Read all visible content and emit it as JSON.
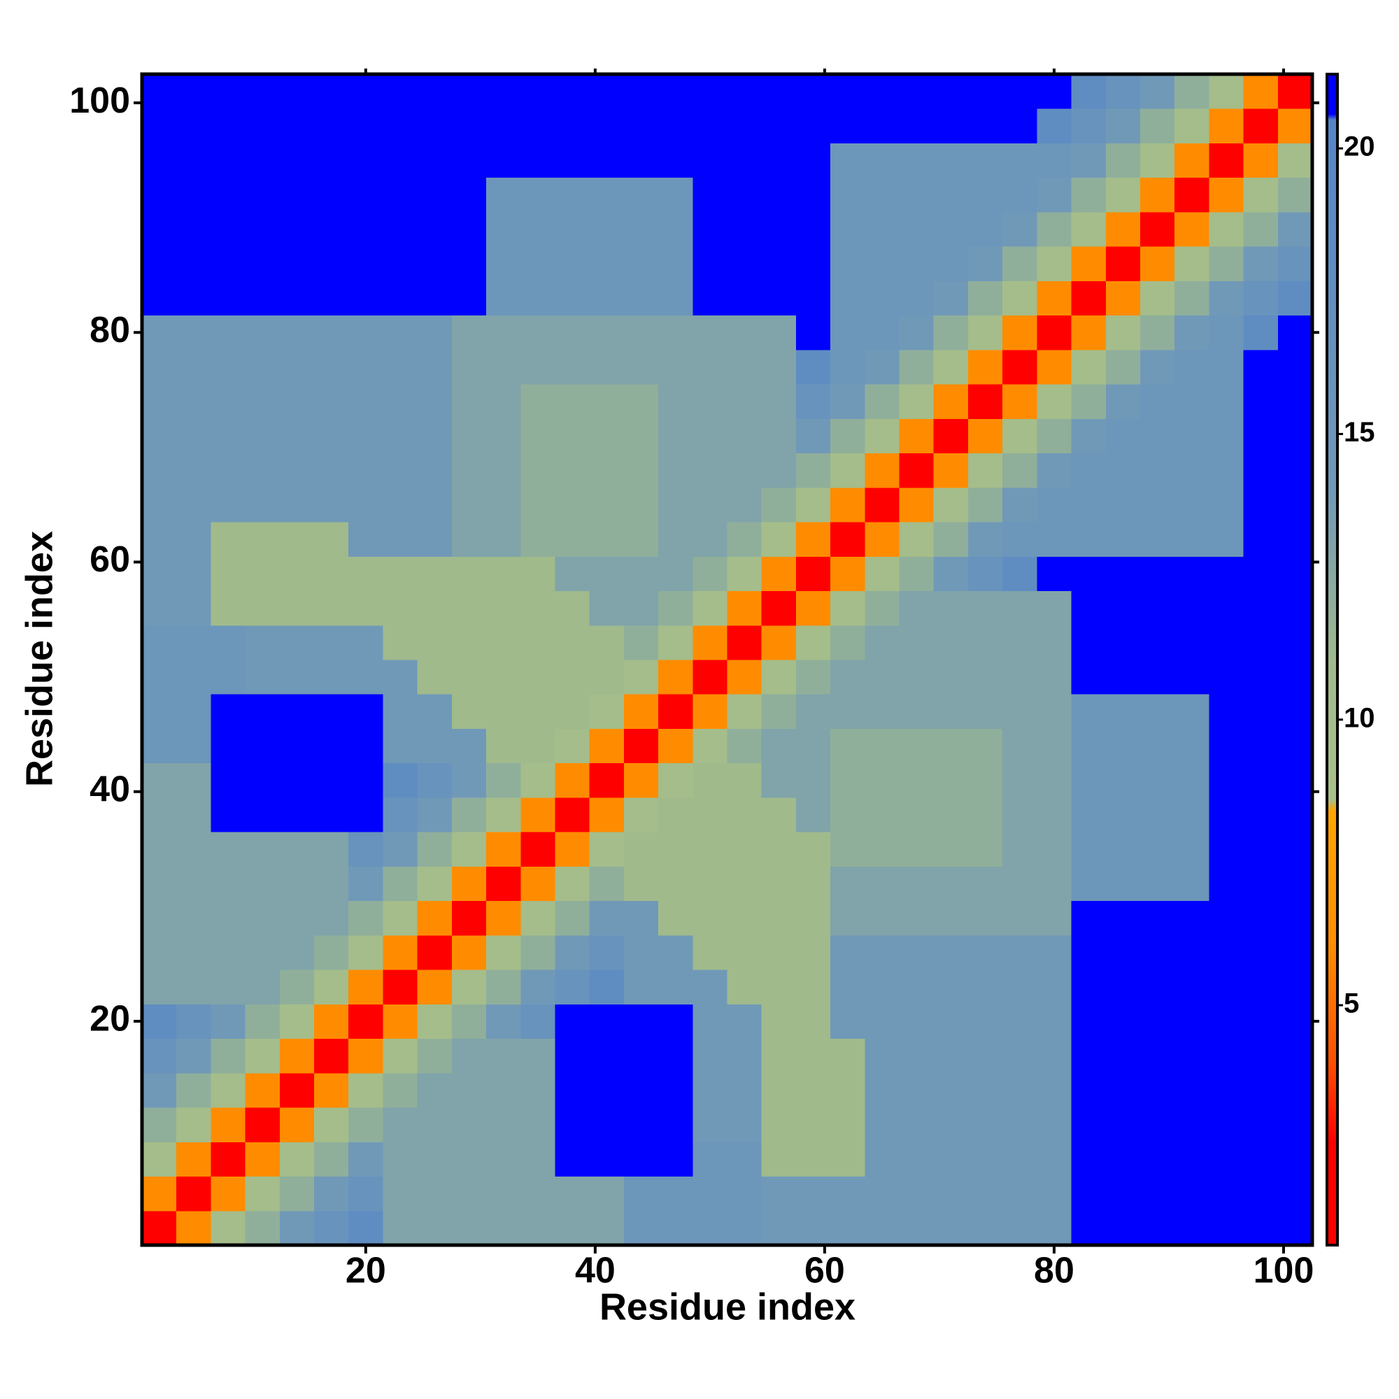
{
  "chart_data": {
    "type": "heatmap",
    "xlabel": "Residue index",
    "ylabel": "Residue index",
    "x": [
      2,
      5,
      8,
      11,
      14,
      17,
      20,
      23,
      26,
      29,
      32,
      35,
      38,
      41,
      44,
      47,
      50,
      53,
      56,
      59,
      62,
      65,
      68,
      71,
      74,
      77,
      80,
      83,
      86,
      89,
      92,
      95,
      98,
      101
    ],
    "y": [
      2,
      5,
      8,
      11,
      14,
      17,
      20,
      23,
      26,
      29,
      32,
      35,
      38,
      41,
      44,
      47,
      50,
      53,
      56,
      59,
      62,
      65,
      68,
      71,
      74,
      77,
      80,
      83,
      86,
      89,
      92,
      95,
      98,
      101
    ],
    "values": [
      [
        2,
        6,
        10,
        12,
        14,
        16,
        18,
        13,
        13,
        13,
        13,
        13,
        13,
        13,
        15,
        15,
        15,
        15,
        14,
        14,
        14,
        14,
        14,
        14,
        14,
        14,
        14,
        21,
        21,
        21,
        21,
        21,
        21,
        21
      ],
      [
        6,
        2,
        6,
        10,
        12,
        14,
        16,
        13,
        13,
        13,
        13,
        13,
        13,
        13,
        15,
        15,
        15,
        15,
        14,
        14,
        14,
        14,
        14,
        14,
        14,
        14,
        14,
        21,
        21,
        21,
        21,
        21,
        21,
        21
      ],
      [
        10,
        6,
        2,
        6,
        10,
        12,
        14,
        13,
        13,
        13,
        13,
        13,
        21,
        21,
        21,
        21,
        15,
        15,
        11,
        11,
        11,
        14,
        14,
        14,
        14,
        14,
        14,
        21,
        21,
        21,
        21,
        21,
        21,
        21
      ],
      [
        12,
        10,
        6,
        2,
        6,
        10,
        12,
        13,
        13,
        13,
        13,
        13,
        21,
        21,
        21,
        21,
        14,
        14,
        11,
        11,
        11,
        14,
        14,
        14,
        14,
        14,
        14,
        21,
        21,
        21,
        21,
        21,
        21,
        21
      ],
      [
        14,
        12,
        10,
        6,
        2,
        6,
        10,
        12,
        13,
        13,
        13,
        13,
        21,
        21,
        21,
        21,
        14,
        14,
        11,
        11,
        11,
        14,
        14,
        14,
        14,
        14,
        14,
        21,
        21,
        21,
        21,
        21,
        21,
        21
      ],
      [
        16,
        14,
        12,
        10,
        6,
        2,
        6,
        10,
        12,
        13,
        13,
        13,
        21,
        21,
        21,
        21,
        14,
        14,
        11,
        11,
        11,
        14,
        14,
        14,
        14,
        14,
        14,
        21,
        21,
        21,
        21,
        21,
        21,
        21
      ],
      [
        18,
        16,
        14,
        12,
        10,
        6,
        2,
        6,
        10,
        12,
        14,
        16,
        21,
        21,
        21,
        21,
        14,
        14,
        11,
        11,
        14,
        14,
        14,
        14,
        14,
        14,
        14,
        21,
        21,
        21,
        21,
        21,
        21,
        21
      ],
      [
        13,
        13,
        13,
        13,
        12,
        10,
        6,
        2,
        6,
        10,
        12,
        14,
        16,
        18,
        14,
        14,
        14,
        11,
        11,
        11,
        14,
        14,
        14,
        14,
        14,
        14,
        14,
        21,
        21,
        21,
        21,
        21,
        21,
        21
      ],
      [
        13,
        13,
        13,
        13,
        13,
        12,
        10,
        6,
        2,
        6,
        10,
        12,
        14,
        16,
        14,
        14,
        11,
        11,
        11,
        11,
        14,
        14,
        14,
        14,
        14,
        14,
        14,
        21,
        21,
        21,
        21,
        21,
        21,
        21
      ],
      [
        13,
        13,
        13,
        13,
        13,
        13,
        12,
        10,
        6,
        2,
        6,
        10,
        12,
        14,
        14,
        11,
        11,
        11,
        11,
        11,
        13,
        13,
        13,
        13,
        13,
        13,
        13,
        21,
        21,
        21,
        21,
        21,
        21,
        21
      ],
      [
        13,
        13,
        13,
        13,
        13,
        13,
        14,
        12,
        10,
        6,
        2,
        6,
        10,
        12,
        11,
        11,
        11,
        11,
        11,
        11,
        13,
        13,
        13,
        13,
        13,
        13,
        13,
        15,
        15,
        15,
        15,
        21,
        21,
        21
      ],
      [
        13,
        13,
        13,
        13,
        13,
        13,
        16,
        14,
        12,
        10,
        6,
        2,
        6,
        10,
        11,
        11,
        11,
        11,
        11,
        11,
        12,
        12,
        12,
        12,
        12,
        13,
        13,
        15,
        15,
        15,
        15,
        21,
        21,
        21
      ],
      [
        13,
        13,
        21,
        21,
        21,
        21,
        21,
        16,
        14,
        12,
        10,
        6,
        2,
        6,
        10,
        11,
        11,
        11,
        11,
        13,
        12,
        12,
        12,
        12,
        12,
        13,
        13,
        15,
        15,
        15,
        15,
        21,
        21,
        21
      ],
      [
        13,
        13,
        21,
        21,
        21,
        21,
        21,
        18,
        16,
        14,
        12,
        10,
        6,
        2,
        6,
        10,
        11,
        11,
        13,
        13,
        12,
        12,
        12,
        12,
        12,
        13,
        13,
        15,
        15,
        15,
        15,
        21,
        21,
        21
      ],
      [
        15,
        15,
        21,
        21,
        21,
        21,
        21,
        14,
        14,
        14,
        11,
        11,
        10,
        6,
        2,
        6,
        10,
        12,
        13,
        13,
        12,
        12,
        12,
        12,
        12,
        13,
        13,
        15,
        15,
        15,
        15,
        21,
        21,
        21
      ],
      [
        15,
        15,
        21,
        21,
        21,
        21,
        21,
        14,
        14,
        11,
        11,
        11,
        11,
        10,
        6,
        2,
        6,
        10,
        12,
        13,
        13,
        13,
        13,
        13,
        13,
        13,
        13,
        15,
        15,
        15,
        15,
        21,
        21,
        21
      ],
      [
        15,
        15,
        15,
        14,
        14,
        14,
        14,
        14,
        11,
        11,
        11,
        11,
        11,
        11,
        10,
        6,
        2,
        6,
        10,
        12,
        13,
        13,
        13,
        13,
        13,
        13,
        13,
        21,
        21,
        21,
        21,
        21,
        21,
        21
      ],
      [
        15,
        15,
        15,
        14,
        14,
        14,
        14,
        11,
        11,
        11,
        11,
        11,
        11,
        11,
        12,
        10,
        6,
        2,
        6,
        10,
        12,
        13,
        13,
        13,
        13,
        13,
        13,
        21,
        21,
        21,
        21,
        21,
        21,
        21
      ],
      [
        14,
        14,
        11,
        11,
        11,
        11,
        11,
        11,
        11,
        11,
        11,
        11,
        11,
        13,
        13,
        12,
        10,
        6,
        2,
        6,
        10,
        12,
        13,
        13,
        13,
        13,
        13,
        21,
        21,
        21,
        21,
        21,
        21,
        21
      ],
      [
        14,
        14,
        11,
        11,
        11,
        11,
        11,
        11,
        11,
        11,
        11,
        11,
        13,
        13,
        13,
        13,
        12,
        10,
        6,
        2,
        6,
        10,
        12,
        14,
        16,
        18,
        21,
        21,
        21,
        21,
        21,
        21,
        21,
        21
      ],
      [
        14,
        14,
        11,
        11,
        11,
        11,
        14,
        14,
        14,
        13,
        13,
        12,
        12,
        12,
        12,
        13,
        13,
        12,
        10,
        6,
        2,
        6,
        10,
        12,
        14,
        15,
        15,
        15,
        15,
        15,
        15,
        15,
        21,
        21
      ],
      [
        14,
        14,
        14,
        14,
        14,
        14,
        14,
        14,
        14,
        13,
        13,
        12,
        12,
        12,
        12,
        13,
        13,
        13,
        12,
        10,
        6,
        2,
        6,
        10,
        12,
        14,
        15,
        15,
        15,
        15,
        15,
        15,
        21,
        21
      ],
      [
        14,
        14,
        14,
        14,
        14,
        14,
        14,
        14,
        14,
        13,
        13,
        12,
        12,
        12,
        12,
        13,
        13,
        13,
        13,
        12,
        10,
        6,
        2,
        6,
        10,
        12,
        14,
        15,
        15,
        15,
        15,
        15,
        21,
        21
      ],
      [
        14,
        14,
        14,
        14,
        14,
        14,
        14,
        14,
        14,
        13,
        13,
        12,
        12,
        12,
        12,
        13,
        13,
        13,
        13,
        14,
        12,
        10,
        6,
        2,
        6,
        10,
        12,
        14,
        15,
        15,
        15,
        15,
        21,
        21
      ],
      [
        14,
        14,
        14,
        14,
        14,
        14,
        14,
        14,
        14,
        13,
        13,
        12,
        12,
        12,
        12,
        13,
        13,
        13,
        13,
        16,
        14,
        12,
        10,
        6,
        2,
        6,
        10,
        12,
        14,
        15,
        15,
        15,
        21,
        21
      ],
      [
        14,
        14,
        14,
        14,
        14,
        14,
        14,
        14,
        14,
        13,
        13,
        13,
        13,
        13,
        13,
        13,
        13,
        13,
        13,
        18,
        15,
        14,
        12,
        10,
        6,
        2,
        6,
        10,
        12,
        14,
        15,
        15,
        21,
        21
      ],
      [
        14,
        14,
        14,
        14,
        14,
        14,
        14,
        14,
        14,
        13,
        13,
        13,
        13,
        13,
        13,
        13,
        13,
        13,
        13,
        21,
        15,
        15,
        14,
        12,
        10,
        6,
        2,
        6,
        10,
        12,
        14,
        15,
        18,
        21
      ],
      [
        21,
        21,
        21,
        21,
        21,
        21,
        21,
        21,
        21,
        21,
        15,
        15,
        15,
        15,
        15,
        15,
        21,
        21,
        21,
        21,
        15,
        15,
        15,
        14,
        12,
        10,
        6,
        2,
        6,
        10,
        12,
        14,
        16,
        18
      ],
      [
        21,
        21,
        21,
        21,
        21,
        21,
        21,
        21,
        21,
        21,
        15,
        15,
        15,
        15,
        15,
        15,
        21,
        21,
        21,
        21,
        15,
        15,
        15,
        15,
        14,
        12,
        10,
        6,
        2,
        6,
        10,
        12,
        14,
        16
      ],
      [
        21,
        21,
        21,
        21,
        21,
        21,
        21,
        21,
        21,
        21,
        15,
        15,
        15,
        15,
        15,
        15,
        21,
        21,
        21,
        21,
        15,
        15,
        15,
        15,
        15,
        14,
        12,
        10,
        6,
        2,
        6,
        10,
        12,
        14
      ],
      [
        21,
        21,
        21,
        21,
        21,
        21,
        21,
        21,
        21,
        21,
        15,
        15,
        15,
        15,
        15,
        15,
        21,
        21,
        21,
        21,
        15,
        15,
        15,
        15,
        15,
        15,
        14,
        12,
        10,
        6,
        2,
        6,
        10,
        12
      ],
      [
        21,
        21,
        21,
        21,
        21,
        21,
        21,
        21,
        21,
        21,
        21,
        21,
        21,
        21,
        21,
        21,
        21,
        21,
        21,
        21,
        15,
        15,
        15,
        15,
        15,
        15,
        15,
        14,
        12,
        10,
        6,
        2,
        6,
        10
      ],
      [
        21,
        21,
        21,
        21,
        21,
        21,
        21,
        21,
        21,
        21,
        21,
        21,
        21,
        21,
        21,
        21,
        21,
        21,
        21,
        21,
        21,
        21,
        21,
        21,
        21,
        21,
        18,
        16,
        14,
        12,
        10,
        6,
        2,
        6
      ],
      [
        21,
        21,
        21,
        21,
        21,
        21,
        21,
        21,
        21,
        21,
        21,
        21,
        21,
        21,
        21,
        21,
        21,
        21,
        21,
        21,
        21,
        21,
        21,
        21,
        21,
        21,
        21,
        18,
        16,
        14,
        12,
        10,
        6,
        2
      ]
    ],
    "xlim": [
      0.5,
      102.5
    ],
    "ylim": [
      0.5,
      102.5
    ],
    "xticks": [
      20,
      40,
      60,
      80,
      100
    ],
    "yticks": [
      20,
      40,
      60,
      80,
      100
    ],
    "zlim": [
      0.8,
      21.3
    ],
    "zticks": [
      5,
      10,
      15,
      20
    ],
    "colorscale": [
      {
        "value": 0.8,
        "color": "#ff0000"
      },
      {
        "value": 2.6,
        "color": "#ff0000"
      },
      {
        "value": 4.0,
        "color": "#ff5000"
      },
      {
        "value": 6.0,
        "color": "#ff8c00"
      },
      {
        "value": 8.4,
        "color": "#ffa500"
      },
      {
        "value": 8.6,
        "color": "#a9c08a"
      },
      {
        "value": 11,
        "color": "#a0ba8c"
      },
      {
        "value": 14,
        "color": "#7099b8"
      },
      {
        "value": 20.5,
        "color": "#5585c8"
      },
      {
        "value": 20.6,
        "color": "#0000ff"
      },
      {
        "value": 21.3,
        "color": "#0000ff"
      }
    ]
  }
}
